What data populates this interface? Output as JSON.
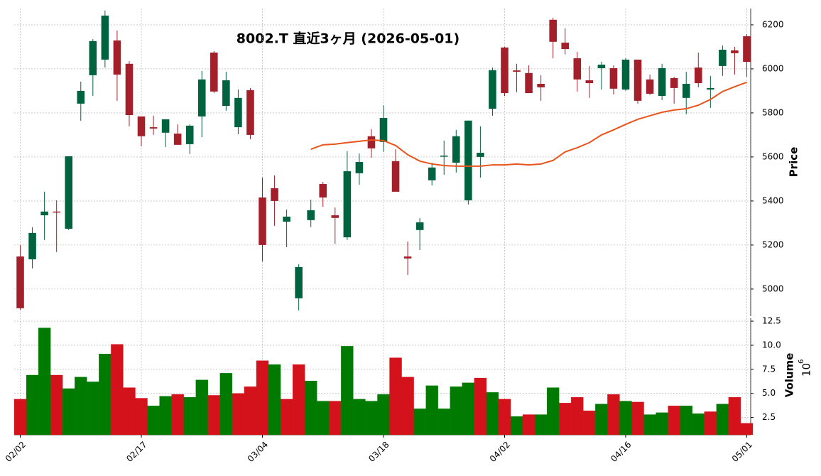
{
  "chart_data": {
    "type": "candlestick",
    "title": "8002.T 直近3ヶ月 (2026-05-01)",
    "categories": [
      "02/02",
      null,
      null,
      null,
      null,
      null,
      null,
      null,
      null,
      null,
      "02/17",
      null,
      null,
      null,
      null,
      null,
      null,
      null,
      null,
      null,
      "03/04",
      null,
      null,
      null,
      null,
      null,
      null,
      null,
      null,
      null,
      "03/18",
      null,
      null,
      null,
      null,
      null,
      null,
      null,
      null,
      null,
      "04/02",
      null,
      null,
      null,
      null,
      null,
      null,
      null,
      null,
      null,
      "04/16",
      null,
      null,
      null,
      null,
      null,
      null,
      null,
      null,
      null,
      "05/01"
    ],
    "open": [
      5148,
      5135,
      5335,
      5352,
      5274,
      5842,
      5971,
      6042,
      6129,
      6023,
      5784,
      5735,
      5710,
      5706,
      5658,
      5784,
      6074,
      5832,
      5735,
      5903,
      5416,
      5458,
      5306,
      4958,
      5313,
      5477,
      5335,
      5235,
      5526,
      5694,
      5668,
      5581,
      5148,
      5268,
      5494,
      5603,
      5574,
      5403,
      5600,
      5819,
      6097,
      5993,
      5981,
      5932,
      6223,
      6119,
      6048,
      5948,
      6003,
      6003,
      5906,
      6042,
      5952,
      5877,
      5958,
      5868,
      6006,
      5906,
      6013,
      6084,
      6148
    ],
    "high": [
      5200,
      5281,
      5442,
      5403,
      5603,
      5942,
      6135,
      6265,
      6174,
      6035,
      5784,
      5787,
      5771,
      5748,
      5748,
      5990,
      6081,
      5987,
      5906,
      5913,
      5506,
      5516,
      5361,
      5113,
      5406,
      5487,
      5371,
      5626,
      5616,
      5726,
      5835,
      5635,
      5216,
      5323,
      5574,
      5674,
      5723,
      5765,
      5739,
      6006,
      6100,
      6023,
      6016,
      5971,
      6232,
      6184,
      6077,
      6013,
      6032,
      6016,
      6048,
      6042,
      5974,
      6023,
      5964,
      5987,
      6074,
      5968,
      6106,
      6100,
      6158
    ],
    "low": [
      4906,
      5094,
      5223,
      5168,
      5268,
      5764,
      5877,
      6006,
      5855,
      5739,
      5648,
      5700,
      5645,
      5655,
      5613,
      5690,
      5890,
      5810,
      5703,
      5681,
      5126,
      5287,
      5190,
      4903,
      5281,
      5374,
      5206,
      5223,
      5474,
      5597,
      5623,
      5442,
      5064,
      5177,
      5471,
      5519,
      5529,
      5384,
      5506,
      5787,
      5877,
      5894,
      5890,
      5855,
      6048,
      6065,
      5897,
      5868,
      5906,
      5884,
      5900,
      5842,
      5881,
      5858,
      5842,
      5794,
      5916,
      5823,
      5968,
      5974,
      5964
    ],
    "close": [
      4913,
      5255,
      5352,
      5348,
      5603,
      5900,
      6126,
      6242,
      5974,
      5790,
      5694,
      5729,
      5771,
      5655,
      5742,
      5952,
      5897,
      5948,
      5868,
      5700,
      5200,
      5400,
      5329,
      5100,
      5358,
      5416,
      5323,
      5535,
      5577,
      5639,
      5777,
      5442,
      5139,
      5303,
      5552,
      5606,
      5694,
      5765,
      5619,
      5994,
      5890,
      5987,
      5890,
      5916,
      6123,
      6090,
      5952,
      5935,
      6019,
      5910,
      6042,
      5855,
      5887,
      6003,
      5913,
      5932,
      5935,
      5913,
      6087,
      6071,
      6032
    ],
    "up_color": "#006340",
    "down_color": "#a3202a",
    "moving_average": {
      "color": "#e8541a",
      "values": [
        null,
        null,
        null,
        null,
        null,
        null,
        null,
        null,
        null,
        null,
        null,
        null,
        null,
        null,
        null,
        null,
        null,
        null,
        null,
        null,
        null,
        null,
        null,
        null,
        5635,
        5655,
        5658,
        5665,
        5671,
        5677,
        5674,
        5652,
        5610,
        5581,
        5568,
        5561,
        5558,
        5558,
        5558,
        5564,
        5564,
        5568,
        5564,
        5568,
        5584,
        5623,
        5642,
        5665,
        5700,
        5723,
        5748,
        5771,
        5787,
        5803,
        5813,
        5819,
        5835,
        5861,
        5897,
        5919,
        5939
      ]
    },
    "ylabel": "Price",
    "ylim": [
      4877,
      6274
    ],
    "yticks": [
      5000,
      5200,
      5400,
      5600,
      5800,
      6000,
      6200
    ],
    "grid": true,
    "volume": {
      "values": [
        4.4,
        6.9,
        11.8,
        6.9,
        5.5,
        6.7,
        6.2,
        9.1,
        10.1,
        5.6,
        4.5,
        3.7,
        4.7,
        4.9,
        4.6,
        6.4,
        4.8,
        7.1,
        5.0,
        5.7,
        8.4,
        8.0,
        4.4,
        8.0,
        6.3,
        4.2,
        4.2,
        9.9,
        4.4,
        4.2,
        4.9,
        8.7,
        6.7,
        3.4,
        5.8,
        3.4,
        5.7,
        6.1,
        6.6,
        5.1,
        4.4,
        2.6,
        2.8,
        2.8,
        5.6,
        4.0,
        4.6,
        3.2,
        3.9,
        4.9,
        4.2,
        4.1,
        2.8,
        3.0,
        3.7,
        3.7,
        2.9,
        3.1,
        3.9,
        4.6,
        1.9
      ],
      "up_color": "#007a00",
      "down_color": "#d3121b",
      "ylabel": "Volume",
      "multiplier": {
        "base": "10",
        "exponent": "6"
      },
      "ylim": [
        0.7,
        12.8
      ],
      "yticks": [
        2.5,
        {
          "value": 5,
          "label": "5.0"
        },
        7.5,
        {
          "value": 10,
          "label": "10.0"
        },
        12.5
      ]
    }
  }
}
